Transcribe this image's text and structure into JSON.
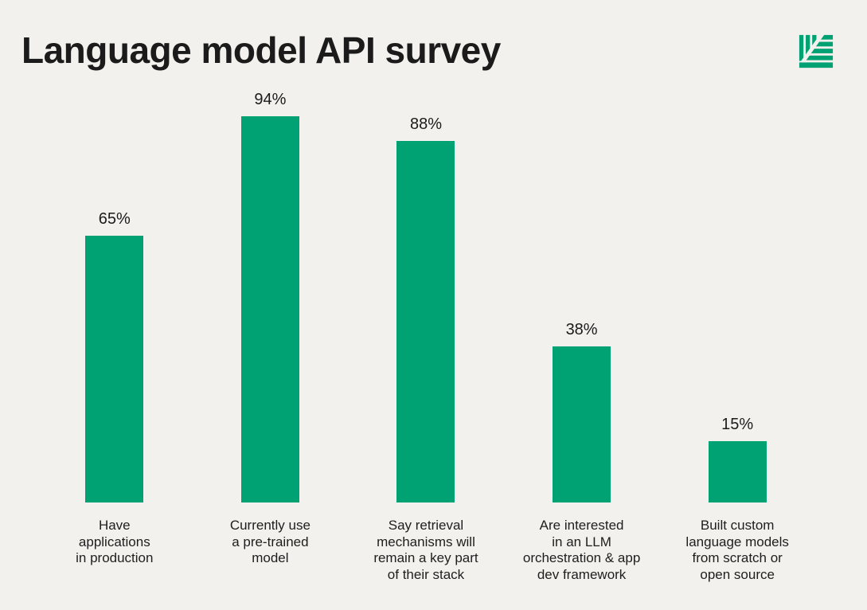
{
  "page": {
    "background_color": "#F2F1ED",
    "text_color": "#1C1C1C"
  },
  "header": {
    "title": "Language model API survey"
  },
  "logo": {
    "name": "striped-leaf-mark",
    "color": "#00A273"
  },
  "chart_data": {
    "type": "bar",
    "title": "Language model API survey",
    "unit": "%",
    "bar_color": "#00A273",
    "ylim": [
      0,
      100
    ],
    "grid": false,
    "legend": false,
    "categories": [
      "Have\napplications\nin production",
      "Currently use\na pre-trained\nmodel",
      "Say retrieval\nmechanisms will\nremain a key part\nof their stack",
      "Are interested\nin an LLM\norchestration & app\ndev framework",
      "Built custom\nlanguage models\nfrom scratch or\nopen source"
    ],
    "values": [
      65,
      94,
      88,
      38,
      15
    ],
    "value_labels": [
      "65%",
      "94%",
      "88%",
      "38%",
      "15%"
    ]
  }
}
